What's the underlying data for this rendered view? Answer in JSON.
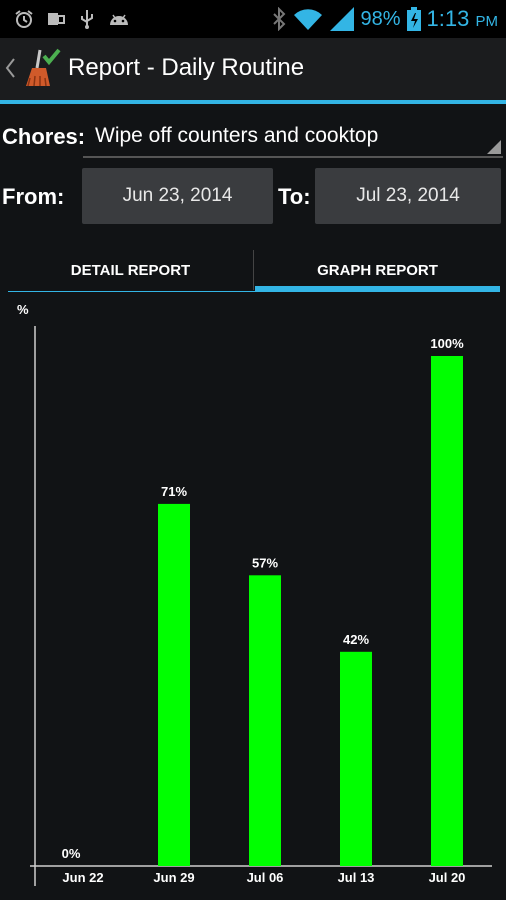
{
  "status_bar": {
    "battery": "98%",
    "time": "1:13",
    "ampm": "PM",
    "icons": [
      "alarm-icon",
      "notification-icon",
      "usb-icon",
      "android-icon",
      "bluetooth-icon",
      "wifi-icon",
      "signal-icon",
      "battery-icon"
    ],
    "accent": "#33b5e5"
  },
  "action_bar": {
    "title": "Report - Daily Routine",
    "app_icon": "broom-checkmark-icon"
  },
  "filters": {
    "chores_label": "Chores:",
    "chores_value": "Wipe off counters and cooktop",
    "from_label": "From:",
    "from_date": "Jun 23, 2014",
    "to_label": "To:",
    "to_date": "Jul 23, 2014"
  },
  "tabs": [
    {
      "label": "DETAIL REPORT",
      "selected": false
    },
    {
      "label": "GRAPH REPORT",
      "selected": true
    }
  ],
  "chart_data": {
    "type": "bar",
    "ylabel": "%",
    "categories": [
      "Jun 22",
      "Jun 29",
      "Jul 06",
      "Jul 13",
      "Jul 20"
    ],
    "values": [
      0,
      71,
      57,
      42,
      100
    ],
    "data_labels": [
      "0%",
      "71%",
      "57%",
      "42%",
      "100%"
    ],
    "ylim": [
      0,
      100
    ],
    "bar_color": "#00ff00",
    "grid": false
  }
}
